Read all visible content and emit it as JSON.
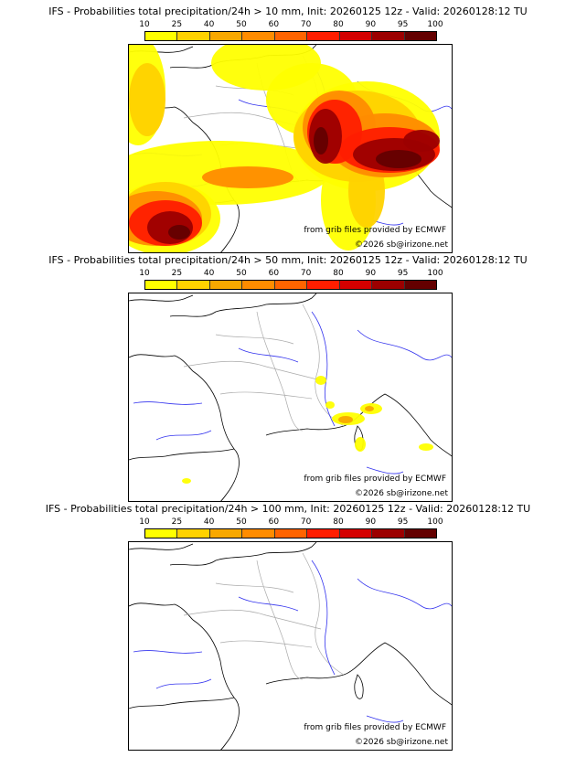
{
  "colorbar": {
    "ticks": [
      "10",
      "25",
      "40",
      "50",
      "60",
      "70",
      "80",
      "90",
      "95",
      "100"
    ],
    "colors": [
      "#ffff00",
      "#ffd200",
      "#f8a800",
      "#ff8c00",
      "#ff6400",
      "#ff1e00",
      "#d40000",
      "#9c0000",
      "#640000"
    ]
  },
  "panels": [
    {
      "title": "IFS - Probabilities total precipitation/24h > 10 mm, Init: 20260125 12z - Valid: 20260128:12 TU",
      "source": "from grib files provided by ECMWF",
      "copyright": "©2026 sb@irizone.net"
    },
    {
      "title": "IFS - Probabilities total precipitation/24h > 50 mm, Init: 20260125 12z - Valid: 20260128:12 TU",
      "source": "from grib files provided by ECMWF",
      "copyright": "©2026 sb@irizone.net"
    },
    {
      "title": "IFS - Probabilities total precipitation/24h > 100 mm, Init: 20260125 12z - Valid: 20260128:12 TU",
      "source": "from grib files provided by ECMWF",
      "copyright": "©2026 sb@irizone.net"
    }
  ]
}
